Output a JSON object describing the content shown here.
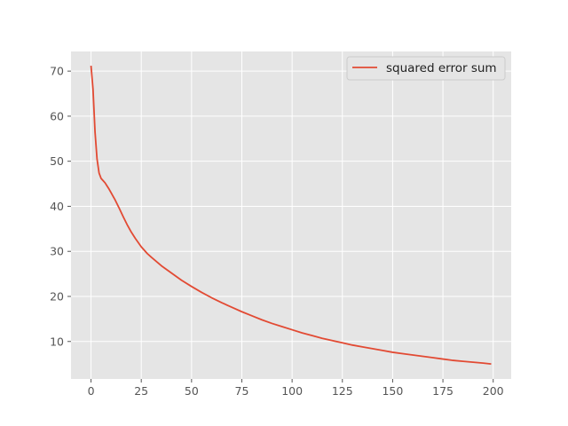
{
  "chart_data": {
    "type": "line",
    "title": "",
    "xlabel": "",
    "ylabel": "",
    "xlim": [
      -9.95,
      208.95
    ],
    "ylim": [
      1.68,
      74.36
    ],
    "x_ticks": [
      0,
      25,
      50,
      75,
      100,
      125,
      150,
      175,
      200
    ],
    "y_ticks": [
      10,
      20,
      30,
      40,
      50,
      60,
      70
    ],
    "grid": true,
    "legend": {
      "position": "top-right"
    },
    "colors": {
      "background": "#e5e5e5",
      "grid": "#ffffff",
      "line": "#e24a33",
      "tick": "#555555"
    },
    "series": [
      {
        "name": "squared error sum",
        "points": [
          [
            0,
            71.2
          ],
          [
            1,
            66.0
          ],
          [
            2,
            56.5
          ],
          [
            3,
            50.5
          ],
          [
            4,
            47.4
          ],
          [
            5,
            46.2
          ],
          [
            6,
            45.7
          ],
          [
            7,
            45.2
          ],
          [
            8,
            44.5
          ],
          [
            9,
            43.8
          ],
          [
            10,
            43.0
          ],
          [
            12,
            41.4
          ],
          [
            14,
            39.6
          ],
          [
            16,
            37.7
          ],
          [
            18,
            35.9
          ],
          [
            20,
            34.3
          ],
          [
            22,
            32.9
          ],
          [
            25,
            31.0
          ],
          [
            28,
            29.5
          ],
          [
            30,
            28.7
          ],
          [
            35,
            26.8
          ],
          [
            40,
            25.2
          ],
          [
            45,
            23.6
          ],
          [
            50,
            22.2
          ],
          [
            55,
            20.9
          ],
          [
            60,
            19.7
          ],
          [
            65,
            18.6
          ],
          [
            70,
            17.6
          ],
          [
            75,
            16.6
          ],
          [
            80,
            15.7
          ],
          [
            85,
            14.8
          ],
          [
            90,
            14.0
          ],
          [
            95,
            13.3
          ],
          [
            100,
            12.6
          ],
          [
            105,
            11.9
          ],
          [
            110,
            11.3
          ],
          [
            115,
            10.7
          ],
          [
            120,
            10.2
          ],
          [
            125,
            9.7
          ],
          [
            130,
            9.2
          ],
          [
            135,
            8.8
          ],
          [
            140,
            8.4
          ],
          [
            145,
            8.0
          ],
          [
            150,
            7.6
          ],
          [
            155,
            7.3
          ],
          [
            160,
            7.0
          ],
          [
            165,
            6.7
          ],
          [
            170,
            6.4
          ],
          [
            175,
            6.1
          ],
          [
            180,
            5.8
          ],
          [
            185,
            5.6
          ],
          [
            190,
            5.4
          ],
          [
            195,
            5.2
          ],
          [
            199,
            5.0
          ]
        ]
      }
    ]
  }
}
